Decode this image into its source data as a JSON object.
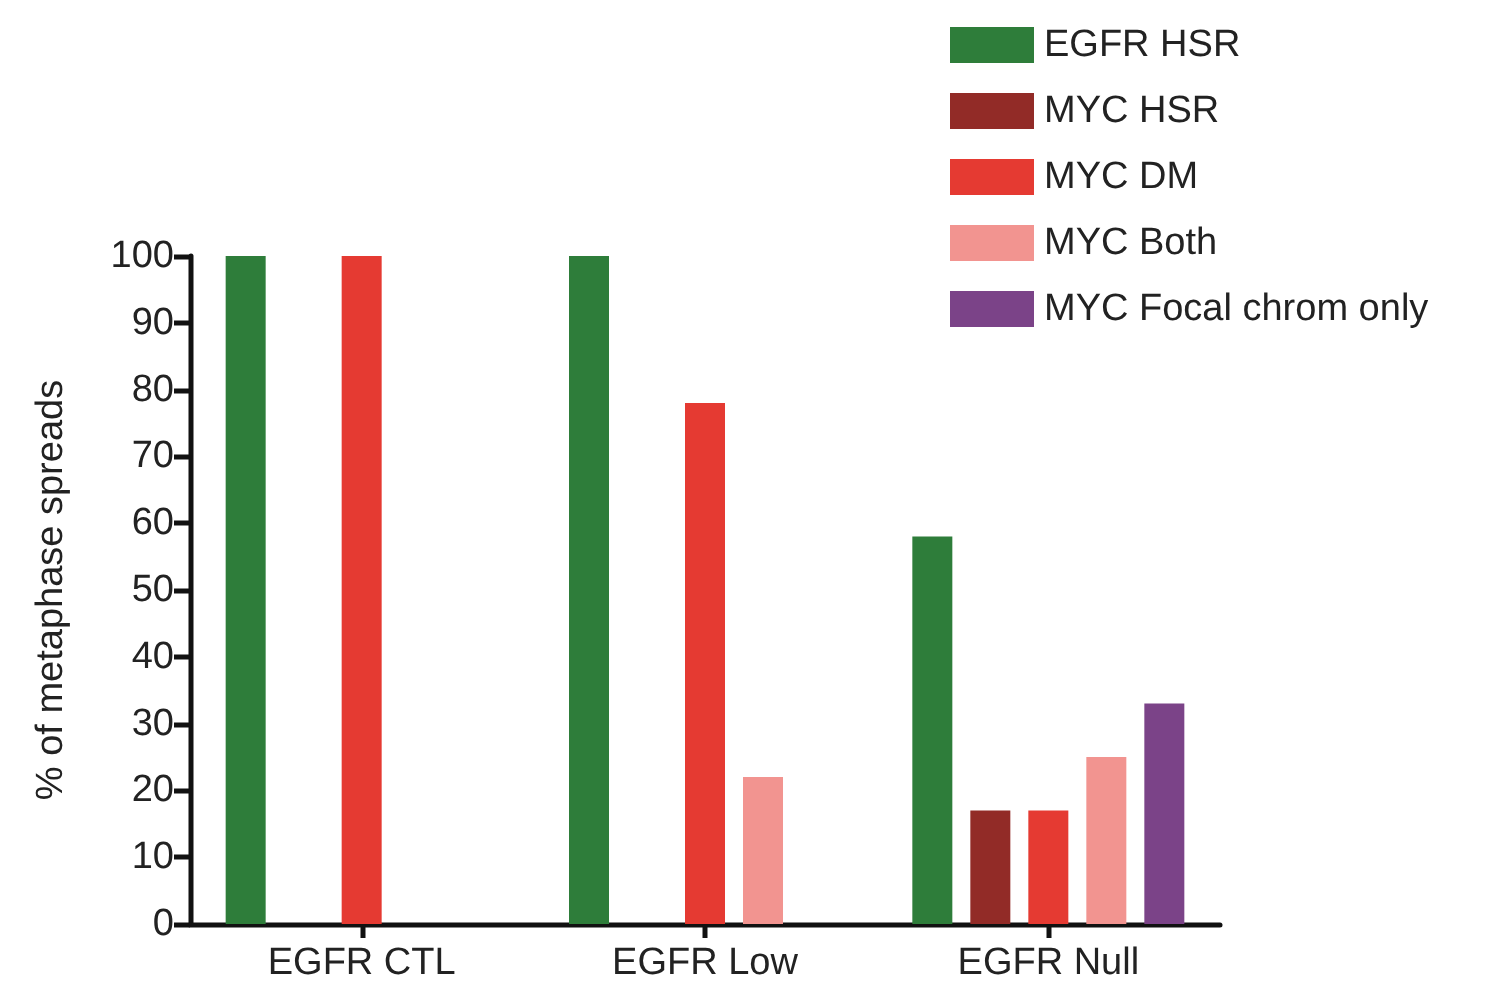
{
  "chart_data": {
    "type": "bar",
    "ylabel": "% of metaphase spreads",
    "categories": [
      "EGFR CTL",
      "EGFR Low",
      "EGFR Null"
    ],
    "series": [
      {
        "name": "EGFR HSR",
        "color": "#2e7d3a",
        "values": [
          100,
          100,
          58
        ]
      },
      {
        "name": "MYC HSR",
        "color": "#922b27",
        "values": [
          0,
          0,
          17
        ]
      },
      {
        "name": "MYC DM",
        "color": "#e53a32",
        "values": [
          100,
          78,
          17
        ]
      },
      {
        "name": "MYC Both",
        "color": "#f29490",
        "values": [
          0,
          22,
          25
        ]
      },
      {
        "name": "MYC Focal chrom only",
        "color": "#7b4388",
        "values": [
          0,
          0,
          33
        ]
      }
    ],
    "ylim": [
      0,
      100
    ],
    "yticks": [
      0,
      10,
      20,
      30,
      40,
      50,
      60,
      70,
      80,
      90,
      100
    ],
    "grid": false,
    "legend": "top right"
  }
}
